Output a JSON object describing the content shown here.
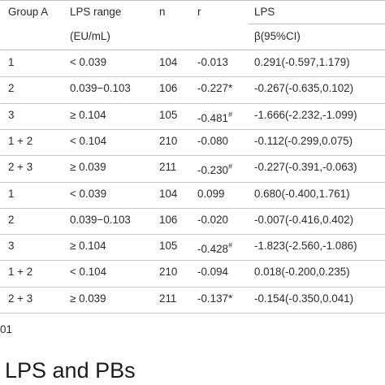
{
  "header": {
    "group": "Group A",
    "lps_range": "LPS range",
    "lps_range_unit": "(EU/mL)",
    "n": "n",
    "r": "r",
    "lps": "LPS",
    "beta": "β(95%CI)"
  },
  "rows": [
    {
      "group": "1",
      "range": "< 0.039",
      "n": "104",
      "r": "-0.013",
      "r_sup": "",
      "beta": "0.291(-0.597,1.179)"
    },
    {
      "group": "2",
      "range": "0.039−0.103",
      "n": "106",
      "r": "-0.227*",
      "r_sup": "",
      "beta": "-0.267(-0.635,0.102)"
    },
    {
      "group": "3",
      "range": "≥ 0.104",
      "n": "105",
      "r": "-0.481",
      "r_sup": "#",
      "beta": "-1.666(-2.232,-1.099)"
    },
    {
      "group": "1 + 2",
      "range": "< 0.104",
      "n": "210",
      "r": "-0.080",
      "r_sup": "",
      "beta": "-0.112(-0.299,0.075)"
    },
    {
      "group": "2 + 3",
      "range": "≥ 0.039",
      "n": "211",
      "r": "-0.230",
      "r_sup": "#",
      "beta": "-0.227(-0.391,-0.063)"
    },
    {
      "group": "1",
      "range": "< 0.039",
      "n": "104",
      "r": "0.099",
      "r_sup": "",
      "beta": "0.680(-0.400,1.761)"
    },
    {
      "group": "2",
      "range": "0.039−0.103",
      "n": "106",
      "r": "-0.020",
      "r_sup": "",
      "beta": "-0.007(-0.416,0.402)"
    },
    {
      "group": "3",
      "range": "≥ 0.104",
      "n": "105",
      "r": "-0.428",
      "r_sup": "#",
      "beta": "-1.823(-2.560,-1.086)"
    },
    {
      "group": "1 + 2",
      "range": "< 0.104",
      "n": "210",
      "r": "-0.094",
      "r_sup": "",
      "beta": "0.018(-0.200,0.235)"
    },
    {
      "group": "2 + 3",
      "range": "≥ 0.039",
      "n": "211",
      "r": "-0.137*",
      "r_sup": "",
      "beta": "-0.154(-0.350,0.041)"
    }
  ],
  "footnote": "01",
  "section_heading": "LPS and PBs"
}
